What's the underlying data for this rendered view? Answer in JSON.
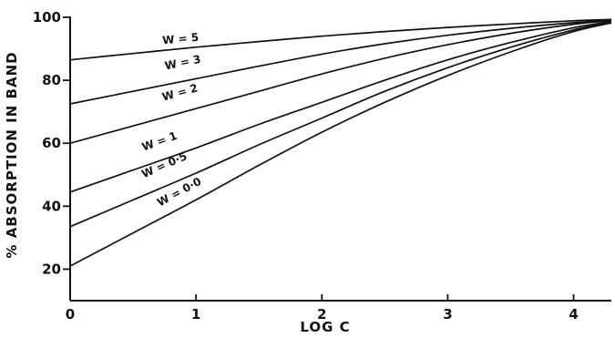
{
  "chart_data": {
    "type": "line",
    "title": "",
    "xlabel": "LOG C",
    "ylabel": "% ABSORPTION IN BAND",
    "xlim": [
      0,
      4.3
    ],
    "ylim": [
      10,
      100
    ],
    "x_ticks": [
      {
        "value": 0,
        "label": "0"
      },
      {
        "value": 1,
        "label": "1"
      },
      {
        "value": 2,
        "label": "2"
      },
      {
        "value": 3,
        "label": "3"
      },
      {
        "value": 4,
        "label": "4"
      }
    ],
    "y_ticks": [
      {
        "value": 20,
        "label": "20"
      },
      {
        "value": 40,
        "label": "40"
      },
      {
        "value": 60,
        "label": "60"
      },
      {
        "value": 80,
        "label": "80"
      },
      {
        "value": 100,
        "label": "100"
      }
    ],
    "grid": false,
    "legend": "none",
    "series": [
      {
        "name": "W = 5",
        "x": [
          0,
          0.5,
          1,
          1.5,
          2,
          2.5,
          3,
          3.5,
          4,
          4.3
        ],
        "y": [
          86.5,
          88.5,
          90.5,
          92.3,
          94,
          95.5,
          96.8,
          97.9,
          98.9,
          99.3
        ],
        "label_at": {
          "x": 0.88,
          "y": 92.0
        }
      },
      {
        "name": "W = 3",
        "x": [
          0,
          0.5,
          1,
          1.5,
          2,
          2.5,
          3,
          3.5,
          4,
          4.3
        ],
        "y": [
          72.5,
          76.5,
          80.5,
          84.5,
          88.3,
          91.6,
          94.3,
          96.5,
          98.3,
          99.1
        ],
        "label_at": {
          "x": 0.9,
          "y": 84.5
        }
      },
      {
        "name": "W = 2",
        "x": [
          0,
          0.5,
          1,
          1.5,
          2,
          2.5,
          3,
          3.5,
          4,
          4.3
        ],
        "y": [
          60,
          65.5,
          71,
          76.5,
          82,
          87,
          91.3,
          94.9,
          97.8,
          98.9
        ],
        "label_at": {
          "x": 0.88,
          "y": 75.0
        }
      },
      {
        "name": "W = 1",
        "x": [
          0,
          0.5,
          1,
          1.5,
          2,
          2.5,
          3,
          3.5,
          4,
          4.3
        ],
        "y": [
          44.5,
          51.5,
          58.5,
          66,
          73,
          80,
          86.5,
          92,
          96.7,
          98.6
        ],
        "label_at": {
          "x": 0.72,
          "y": 59.5
        }
      },
      {
        "name": "W = 0.5",
        "x": [
          0,
          0.5,
          1,
          1.5,
          2,
          2.5,
          3,
          3.5,
          4,
          4.3
        ],
        "y": [
          33.5,
          42,
          50.5,
          59.5,
          68,
          76.5,
          84,
          90.5,
          96,
          98.4
        ],
        "label_at": {
          "x": 0.76,
          "y": 52.0
        }
      },
      {
        "name": "W = 0.0",
        "x": [
          0,
          0.5,
          1,
          1.5,
          2,
          2.5,
          3,
          3.5,
          4,
          4.3
        ],
        "y": [
          21,
          31.5,
          42,
          53,
          63.5,
          73,
          81.5,
          89,
          95.5,
          98.2
        ],
        "label_at": {
          "x": 0.88,
          "y": 43.5
        }
      }
    ],
    "curve_labels": [
      "W = 5",
      "W = 3",
      "W = 2",
      "W = 1",
      "W = 0·5",
      "W = 0·0"
    ]
  }
}
